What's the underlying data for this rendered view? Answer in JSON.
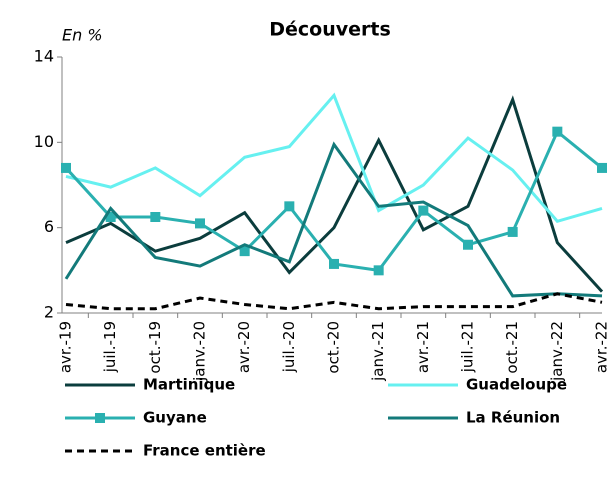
{
  "chart_data": {
    "type": "line",
    "title": "Découverts",
    "y_axis_label": "En %",
    "categories": [
      "avr.-19",
      "juil.-19",
      "oct.-19",
      "janv.-20",
      "avr.-20",
      "juil.-20",
      "oct.-20",
      "janv.-21",
      "avr.-21",
      "juil.-21",
      "oct.-21",
      "janv.-22",
      "avr.-22"
    ],
    "series": [
      {
        "name": "Martinique",
        "color": "#0b3d3d",
        "values": [
          5.3,
          6.2,
          4.9,
          5.5,
          6.7,
          3.9,
          6.0,
          10.1,
          5.9,
          7.0,
          12.0,
          5.3,
          3.0
        ]
      },
      {
        "name": "Guadeloupe",
        "color": "#66f0f0",
        "values": [
          8.4,
          7.9,
          8.8,
          7.5,
          9.3,
          9.8,
          12.2,
          6.8,
          8.0,
          10.2,
          8.7,
          6.3,
          6.9
        ]
      },
      {
        "name": "Guyane",
        "color": "#2ab0b0",
        "marker": "square",
        "values": [
          8.8,
          6.5,
          6.5,
          6.2,
          4.9,
          7.0,
          4.3,
          4.0,
          6.8,
          5.2,
          5.8,
          10.5,
          8.8
        ]
      },
      {
        "name": "La Réunion",
        "color": "#137a7a",
        "values": [
          3.6,
          6.9,
          4.6,
          4.2,
          5.2,
          4.4,
          9.9,
          7.0,
          7.2,
          6.1,
          2.8,
          2.9,
          2.8
        ]
      },
      {
        "name": "France entière",
        "color": "#000000",
        "dash": true,
        "values": [
          2.4,
          2.2,
          2.2,
          2.7,
          2.4,
          2.2,
          2.5,
          2.2,
          2.3,
          2.3,
          2.3,
          2.9,
          2.5
        ]
      }
    ],
    "ylim": [
      2,
      14
    ],
    "yticks": [
      2,
      6,
      10,
      14
    ],
    "grid": false
  }
}
